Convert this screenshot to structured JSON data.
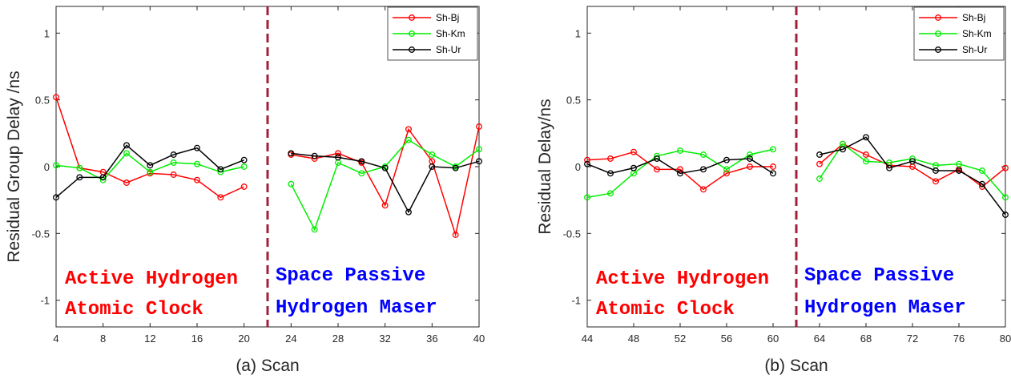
{
  "colors": {
    "Sh-Bj": "#ff0000",
    "Sh-Km": "#00ee00",
    "Sh-Ur": "#000000",
    "divider": "#a0203a",
    "annot_left": "#ff0000",
    "annot_right": "#0000ff"
  },
  "chart_data": [
    {
      "type": "line",
      "xlabel": "(a) Scan",
      "ylabel": "Residual Group Delay /ns",
      "xlim": [
        4,
        40
      ],
      "ylim": [
        -1.2,
        1.2
      ],
      "xticks": [
        4,
        8,
        12,
        16,
        20,
        24,
        28,
        32,
        36,
        40
      ],
      "yticks": [
        -1,
        -0.5,
        0,
        0.5,
        1
      ],
      "ytick_labels": [
        "-1",
        "-0.5",
        "0",
        "0.5",
        "1"
      ],
      "divider_x": 22,
      "grid": false,
      "legend": "top-right",
      "annotations": {
        "left": [
          "Active Hydrogen",
          "Atomic Clock"
        ],
        "right": [
          "Space Passive",
          "Hydrogen Maser"
        ]
      },
      "series": [
        {
          "name": "Sh-Bj",
          "segments": [
            {
              "x": [
                4,
                6,
                8,
                10,
                12,
                14,
                16,
                18,
                20
              ],
              "y": [
                0.52,
                -0.01,
                -0.04,
                -0.12,
                -0.05,
                -0.06,
                -0.1,
                -0.23,
                -0.15
              ]
            },
            {
              "x": [
                24,
                26,
                28,
                30,
                32,
                34,
                36,
                38,
                40
              ],
              "y": [
                0.09,
                0.06,
                0.1,
                0.03,
                -0.29,
                0.28,
                0.04,
                -0.51,
                0.3
              ]
            }
          ]
        },
        {
          "name": "Sh-Km",
          "segments": [
            {
              "x": [
                4,
                6,
                8,
                10,
                12,
                14,
                16,
                18,
                20
              ],
              "y": [
                0.01,
                -0.01,
                -0.1,
                0.1,
                -0.04,
                0.03,
                0.02,
                -0.04,
                0.0
              ]
            },
            {
              "x": [
                24,
                26,
                28,
                30,
                32,
                34,
                36,
                38,
                40
              ],
              "y": [
                -0.13,
                -0.47,
                0.03,
                -0.05,
                0.0,
                0.2,
                0.09,
                0.0,
                0.13
              ]
            }
          ]
        },
        {
          "name": "Sh-Ur",
          "segments": [
            {
              "x": [
                4,
                6,
                8,
                10,
                12,
                14,
                16,
                18,
                20
              ],
              "y": [
                -0.23,
                -0.08,
                -0.08,
                0.16,
                0.01,
                0.09,
                0.14,
                -0.02,
                0.05
              ]
            },
            {
              "x": [
                24,
                26,
                28,
                30,
                32,
                34,
                36,
                38,
                40
              ],
              "y": [
                0.1,
                0.08,
                0.07,
                0.04,
                -0.01,
                -0.34,
                0.0,
                -0.01,
                0.04
              ]
            }
          ]
        }
      ]
    },
    {
      "type": "line",
      "xlabel": "(b) Scan",
      "ylabel": "Residual Delay/ns",
      "xlim": [
        44,
        80
      ],
      "ylim": [
        -1.2,
        1.2
      ],
      "xticks": [
        44,
        48,
        52,
        56,
        60,
        64,
        68,
        72,
        76,
        80
      ],
      "yticks": [
        -1,
        -0.5,
        0,
        0.5,
        1
      ],
      "ytick_labels": [
        "-1",
        "-0.5",
        "0",
        "0.5",
        "1"
      ],
      "divider_x": 62,
      "grid": false,
      "legend": "top-right",
      "annotations": {
        "left": [
          "Active Hydrogen",
          "Atomic Clock"
        ],
        "right": [
          "Space Passive",
          "Hydrogen Maser"
        ]
      },
      "series": [
        {
          "name": "Sh-Bj",
          "segments": [
            {
              "x": [
                44,
                46,
                48,
                50,
                52,
                54,
                56,
                58,
                60
              ],
              "y": [
                0.05,
                0.06,
                0.11,
                -0.02,
                -0.02,
                -0.17,
                -0.05,
                0.0,
                0.0
              ]
            },
            {
              "x": [
                64,
                66,
                68,
                70,
                72,
                74,
                76,
                78,
                80
              ],
              "y": [
                0.02,
                0.17,
                0.09,
                0.01,
                0.0,
                -0.11,
                -0.02,
                -0.15,
                -0.01
              ]
            }
          ]
        },
        {
          "name": "Sh-Km",
          "segments": [
            {
              "x": [
                44,
                46,
                48,
                50,
                52,
                54,
                56,
                58,
                60
              ],
              "y": [
                -0.23,
                -0.2,
                -0.05,
                0.08,
                0.12,
                0.09,
                -0.02,
                0.09,
                0.13
              ]
            },
            {
              "x": [
                64,
                66,
                68,
                70,
                72,
                74,
                76,
                78,
                80
              ],
              "y": [
                -0.09,
                0.17,
                0.04,
                0.03,
                0.06,
                0.01,
                0.02,
                -0.03,
                -0.23
              ]
            }
          ]
        },
        {
          "name": "Sh-Ur",
          "segments": [
            {
              "x": [
                44,
                46,
                48,
                50,
                52,
                54,
                56,
                58,
                60
              ],
              "y": [
                0.02,
                -0.05,
                -0.01,
                0.06,
                -0.05,
                -0.02,
                0.05,
                0.06,
                -0.05
              ]
            },
            {
              "x": [
                64,
                66,
                68,
                70,
                72,
                74,
                76,
                78,
                80
              ],
              "y": [
                0.09,
                0.13,
                0.22,
                -0.01,
                0.04,
                -0.03,
                -0.03,
                -0.13,
                -0.36
              ]
            }
          ]
        }
      ]
    }
  ]
}
